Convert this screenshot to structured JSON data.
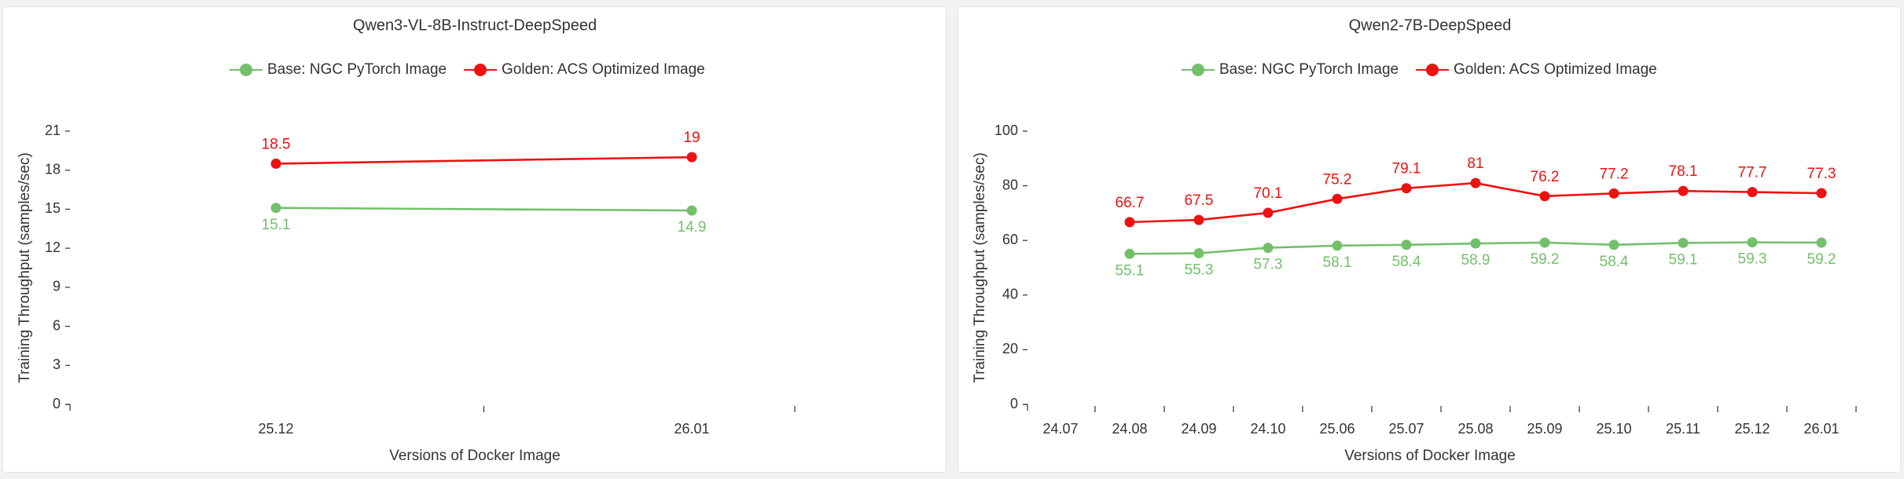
{
  "chart_data": [
    {
      "type": "line",
      "title": "Qwen3-VL-8B-Instruct-DeepSpeed",
      "xlabel": "Versions of Docker Image",
      "ylabel": "Training Throughput (samples/sec)",
      "ylim": [
        0,
        21
      ],
      "y_ticks": [
        0,
        3,
        6,
        9,
        12,
        15,
        18,
        21
      ],
      "categories": [
        "25.12",
        "26.01",
        ""
      ],
      "legend_position": "top-center",
      "grid": false,
      "series": [
        {
          "name": "Base: NGC PyTorch Image",
          "color": "#73c06b",
          "values": [
            15.1,
            14.9,
            null
          ],
          "labels_below": true
        },
        {
          "name": "Golden: ACS Optimized Image",
          "color": "#ee1111",
          "values": [
            18.5,
            19,
            null
          ],
          "labels_below": false
        }
      ]
    },
    {
      "type": "line",
      "title": "Qwen2-7B-DeepSpeed",
      "xlabel": "Versions of Docker Image",
      "ylabel": "Training Throughput (samples/sec)",
      "ylim": [
        0,
        100
      ],
      "y_ticks": [
        0,
        20,
        40,
        60,
        80,
        100
      ],
      "categories": [
        "24.07",
        "24.08",
        "24.09",
        "24.10",
        "25.06",
        "25.07",
        "25.08",
        "25.09",
        "25.10",
        "25.11",
        "25.12",
        "26.01"
      ],
      "legend_position": "top-center",
      "grid": false,
      "series": [
        {
          "name": "Base: NGC PyTorch Image",
          "color": "#73c06b",
          "values": [
            null,
            55.1,
            55.3,
            57.3,
            58.1,
            58.4,
            58.9,
            59.2,
            58.4,
            59.1,
            59.3,
            59.2
          ],
          "labels_below": true
        },
        {
          "name": "Golden: ACS Optimized Image",
          "color": "#ee1111",
          "values": [
            null,
            66.7,
            67.5,
            70.1,
            75.2,
            79.1,
            81,
            76.2,
            77.2,
            78.1,
            77.7,
            77.3
          ],
          "labels_below": false
        }
      ]
    }
  ]
}
